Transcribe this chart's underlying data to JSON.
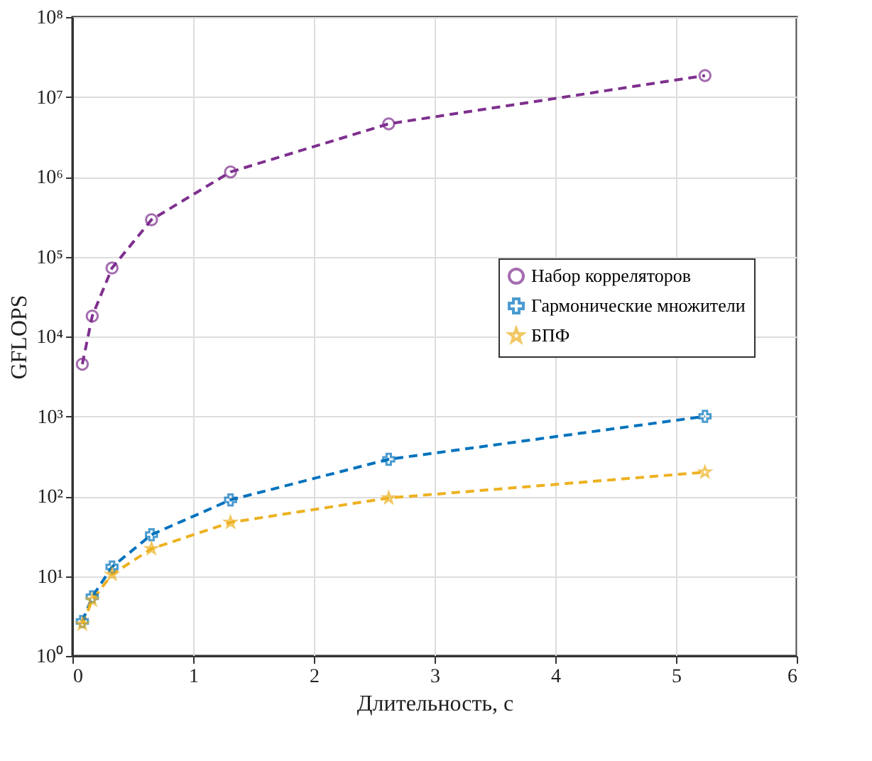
{
  "chart_data": {
    "type": "line",
    "xlabel": "Длительность, с",
    "ylabel": "GFLOPS",
    "x": [
      0.082,
      0.164,
      0.328,
      0.655,
      1.31,
      2.62,
      5.24
    ],
    "series": [
      {
        "name": "Набор корреляторов",
        "color": "#7e2f8e",
        "marker": "circle",
        "values": [
          4500,
          18000,
          72000,
          290000,
          1150000,
          4600000,
          18500000
        ]
      },
      {
        "name": "Гармонические множители",
        "color": "#0072bd",
        "marker": "cross",
        "values": [
          2.7,
          5.5,
          13,
          33,
          90,
          290,
          1000
        ]
      },
      {
        "name": "БПФ",
        "color": "#edb120",
        "marker": "star",
        "values": [
          2.5,
          5,
          10.5,
          22,
          47,
          95,
          200
        ]
      }
    ],
    "xlim": [
      0,
      6
    ],
    "xticks": [
      0,
      1,
      2,
      3,
      4,
      5,
      6
    ],
    "ylim": [
      1,
      100000000
    ],
    "yticks": [
      {
        "value": 1,
        "label": "10⁰"
      },
      {
        "value": 10,
        "label": "10¹"
      },
      {
        "value": 100,
        "label": "10²"
      },
      {
        "value": 1000,
        "label": "10³"
      },
      {
        "value": 10000,
        "label": "10⁴"
      },
      {
        "value": 100000,
        "label": "10⁵"
      },
      {
        "value": 1000000,
        "label": "10⁶"
      },
      {
        "value": 10000000,
        "label": "10⁷"
      },
      {
        "value": 100000000,
        "label": "10⁸"
      }
    ],
    "log": "y",
    "grid": true,
    "legend": "right",
    "line_style": "dashed"
  }
}
